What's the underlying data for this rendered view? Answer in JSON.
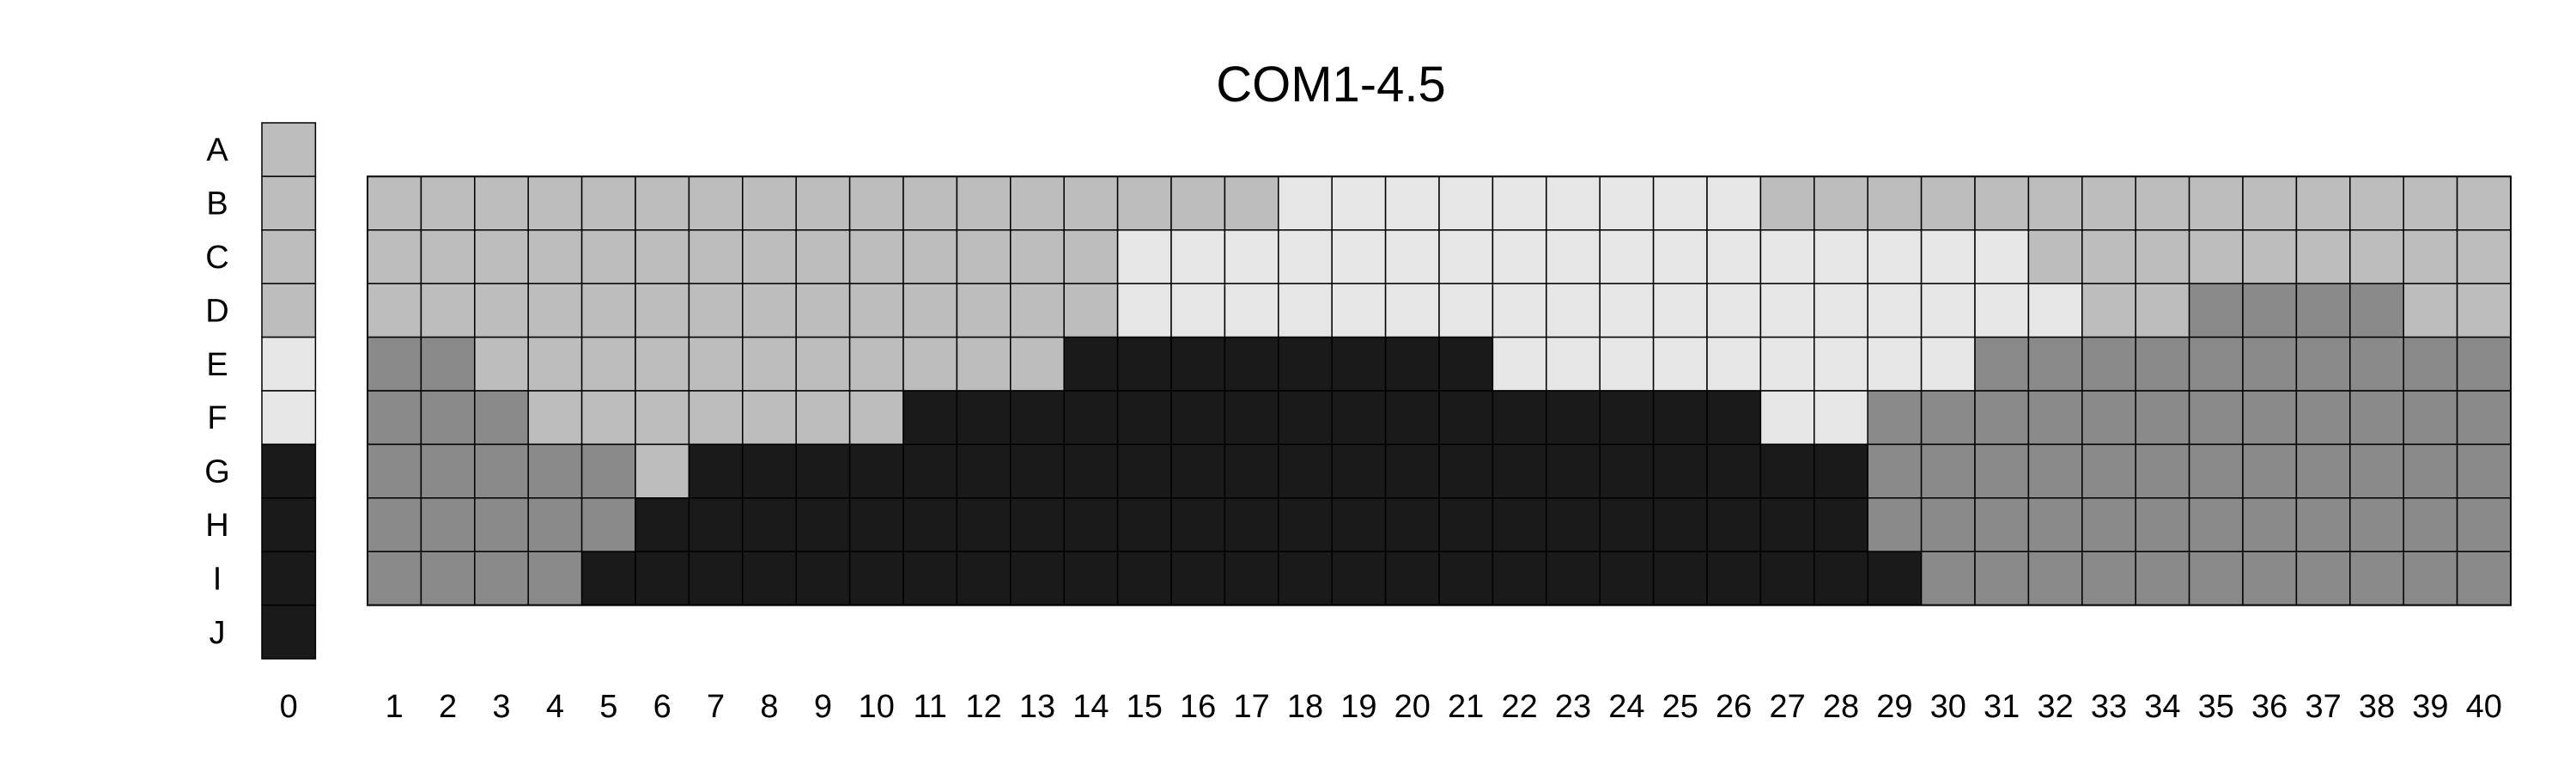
{
  "chart_data": {
    "type": "heatmap",
    "title": "COM1-4.5",
    "rows": [
      "A",
      "B",
      "C",
      "D",
      "E",
      "F",
      "G",
      "H",
      "I",
      "J"
    ],
    "reference_column": {
      "label": "0",
      "values": [
        2,
        2,
        2,
        2,
        1,
        1,
        3,
        3,
        3,
        3
      ]
    },
    "columns": [
      "1",
      "2",
      "3",
      "4",
      "5",
      "6",
      "7",
      "8",
      "9",
      "10",
      "11",
      "12",
      "13",
      "14",
      "15",
      "16",
      "17",
      "18",
      "19",
      "20",
      "21",
      "22",
      "23",
      "24",
      "25",
      "26",
      "27",
      "28",
      "29",
      "30",
      "31",
      "32",
      "33",
      "34",
      "35",
      "36",
      "37",
      "38",
      "39",
      "40"
    ],
    "grid_rows": [
      "B",
      "C",
      "D",
      "E",
      "F",
      "G",
      "H",
      "I"
    ],
    "values": [
      [
        2,
        2,
        2,
        2,
        2,
        2,
        2,
        2,
        2,
        2,
        2,
        2,
        2,
        2,
        2,
        2,
        2,
        1,
        1,
        1,
        1,
        1,
        1,
        1,
        1,
        1,
        2,
        2,
        2,
        2,
        2,
        2,
        2,
        2,
        2,
        2,
        2,
        2,
        2,
        2
      ],
      [
        2,
        2,
        2,
        2,
        2,
        2,
        2,
        2,
        2,
        2,
        2,
        2,
        2,
        2,
        1,
        1,
        1,
        1,
        1,
        1,
        1,
        1,
        1,
        1,
        1,
        1,
        1,
        1,
        1,
        1,
        1,
        2,
        2,
        2,
        2,
        2,
        2,
        2,
        2,
        2
      ],
      [
        2,
        2,
        2,
        2,
        2,
        2,
        2,
        2,
        2,
        2,
        2,
        2,
        2,
        2,
        1,
        1,
        1,
        1,
        1,
        1,
        1,
        1,
        1,
        1,
        1,
        1,
        1,
        1,
        1,
        1,
        1,
        1,
        2,
        2,
        4,
        4,
        4,
        4,
        2,
        2
      ],
      [
        4,
        4,
        2,
        2,
        2,
        2,
        2,
        2,
        2,
        2,
        2,
        2,
        2,
        3,
        3,
        3,
        3,
        3,
        3,
        3,
        3,
        1,
        1,
        1,
        1,
        1,
        1,
        1,
        1,
        1,
        4,
        4,
        4,
        4,
        4,
        4,
        4,
        4,
        4,
        4
      ],
      [
        4,
        4,
        4,
        2,
        2,
        2,
        2,
        2,
        2,
        2,
        3,
        3,
        3,
        3,
        3,
        3,
        3,
        3,
        3,
        3,
        3,
        3,
        3,
        3,
        3,
        3,
        1,
        1,
        4,
        4,
        4,
        4,
        4,
        4,
        4,
        4,
        4,
        4,
        4,
        4
      ],
      [
        4,
        4,
        4,
        4,
        4,
        2,
        3,
        3,
        3,
        3,
        3,
        3,
        3,
        3,
        3,
        3,
        3,
        3,
        3,
        3,
        3,
        3,
        3,
        3,
        3,
        3,
        3,
        3,
        4,
        4,
        4,
        4,
        4,
        4,
        4,
        4,
        4,
        4,
        4,
        4
      ],
      [
        4,
        4,
        4,
        4,
        4,
        3,
        3,
        3,
        3,
        3,
        3,
        3,
        3,
        3,
        3,
        3,
        3,
        3,
        3,
        3,
        3,
        3,
        3,
        3,
        3,
        3,
        3,
        3,
        4,
        4,
        4,
        4,
        4,
        4,
        4,
        4,
        4,
        4,
        4,
        4
      ],
      [
        4,
        4,
        4,
        4,
        3,
        3,
        3,
        3,
        3,
        3,
        3,
        3,
        3,
        3,
        3,
        3,
        3,
        3,
        3,
        3,
        3,
        3,
        3,
        3,
        3,
        3,
        3,
        3,
        3,
        4,
        4,
        4,
        4,
        4,
        4,
        4,
        4,
        4,
        4,
        4
      ]
    ],
    "category_colors": {
      "1": "#e6e6e6",
      "2": "#bdbdbd",
      "3": "#1a1a1a",
      "4": "#8a8a8a"
    },
    "grid": true
  }
}
